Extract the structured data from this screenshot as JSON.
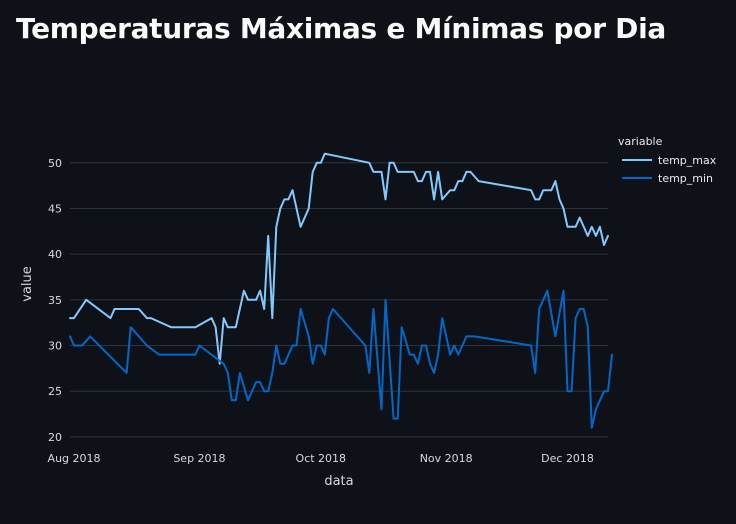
{
  "page": {
    "title": "Temperaturas Máximas e Mínimas por Dia"
  },
  "chart_data": {
    "type": "line",
    "xlabel": "data",
    "ylabel": "value",
    "xlim": [
      "2018-07-31",
      "2018-12-11"
    ],
    "ylim": [
      19,
      56
    ],
    "y_ticks": [
      20,
      25,
      30,
      35,
      40,
      45,
      50
    ],
    "x_ticks": [
      {
        "date": "2018-08-01",
        "label": "Aug 2018"
      },
      {
        "date": "2018-09-01",
        "label": "Sep 2018"
      },
      {
        "date": "2018-10-01",
        "label": "Oct 2018"
      },
      {
        "date": "2018-11-01",
        "label": "Nov 2018"
      },
      {
        "date": "2018-12-01",
        "label": "Dec 2018"
      }
    ],
    "grid": true,
    "legend": {
      "title": "variable",
      "position": "right"
    },
    "series": [
      {
        "name": "temp_max",
        "color": "#83c9ff",
        "points": [
          [
            "2018-07-31",
            33
          ],
          [
            "2018-08-01",
            33
          ],
          [
            "2018-08-04",
            35
          ],
          [
            "2018-08-10",
            33
          ],
          [
            "2018-08-11",
            34
          ],
          [
            "2018-08-17",
            34
          ],
          [
            "2018-08-19",
            33
          ],
          [
            "2018-08-20",
            33
          ],
          [
            "2018-08-25",
            32
          ],
          [
            "2018-08-31",
            32
          ],
          [
            "2018-09-04",
            33
          ],
          [
            "2018-09-05",
            32
          ],
          [
            "2018-09-06",
            28
          ],
          [
            "2018-09-07",
            33
          ],
          [
            "2018-09-08",
            32
          ],
          [
            "2018-09-10",
            32
          ],
          [
            "2018-09-12",
            36
          ],
          [
            "2018-09-13",
            35
          ],
          [
            "2018-09-15",
            35
          ],
          [
            "2018-09-16",
            36
          ],
          [
            "2018-09-17",
            34
          ],
          [
            "2018-09-18",
            42
          ],
          [
            "2018-09-19",
            33
          ],
          [
            "2018-09-20",
            43
          ],
          [
            "2018-09-21",
            45
          ],
          [
            "2018-09-22",
            46
          ],
          [
            "2018-09-23",
            46
          ],
          [
            "2018-09-24",
            47
          ],
          [
            "2018-09-26",
            43
          ],
          [
            "2018-09-28",
            45
          ],
          [
            "2018-09-29",
            49
          ],
          [
            "2018-09-30",
            50
          ],
          [
            "2018-10-01",
            50
          ],
          [
            "2018-10-02",
            51
          ],
          [
            "2018-10-13",
            50
          ],
          [
            "2018-10-14",
            49
          ],
          [
            "2018-10-16",
            49
          ],
          [
            "2018-10-17",
            46
          ],
          [
            "2018-10-18",
            50
          ],
          [
            "2018-10-19",
            50
          ],
          [
            "2018-10-20",
            49
          ],
          [
            "2018-10-24",
            49
          ],
          [
            "2018-10-25",
            48
          ],
          [
            "2018-10-26",
            48
          ],
          [
            "2018-10-27",
            49
          ],
          [
            "2018-10-28",
            49
          ],
          [
            "2018-10-29",
            46
          ],
          [
            "2018-10-30",
            49
          ],
          [
            "2018-10-31",
            46
          ],
          [
            "2018-11-02",
            47
          ],
          [
            "2018-11-03",
            47
          ],
          [
            "2018-11-04",
            48
          ],
          [
            "2018-11-05",
            48
          ],
          [
            "2018-11-06",
            49
          ],
          [
            "2018-11-07",
            49
          ],
          [
            "2018-11-09",
            48
          ],
          [
            "2018-11-22",
            47
          ],
          [
            "2018-11-23",
            46
          ],
          [
            "2018-11-24",
            46
          ],
          [
            "2018-11-25",
            47
          ],
          [
            "2018-11-27",
            47
          ],
          [
            "2018-11-28",
            48
          ],
          [
            "2018-11-29",
            46
          ],
          [
            "2018-11-30",
            45
          ],
          [
            "2018-12-01",
            43
          ],
          [
            "2018-12-03",
            43
          ],
          [
            "2018-12-04",
            44
          ],
          [
            "2018-12-06",
            42
          ],
          [
            "2018-12-07",
            43
          ],
          [
            "2018-12-08",
            42
          ],
          [
            "2018-12-09",
            43
          ],
          [
            "2018-12-10",
            41
          ],
          [
            "2018-12-11",
            42
          ]
        ]
      },
      {
        "name": "temp_min",
        "color": "#0068c9",
        "points": [
          [
            "2018-07-31",
            31
          ],
          [
            "2018-08-01",
            30
          ],
          [
            "2018-08-03",
            30
          ],
          [
            "2018-08-05",
            31
          ],
          [
            "2018-08-14",
            27
          ],
          [
            "2018-08-15",
            32
          ],
          [
            "2018-08-19",
            30
          ],
          [
            "2018-08-22",
            29
          ],
          [
            "2018-08-26",
            29
          ],
          [
            "2018-08-31",
            29
          ],
          [
            "2018-09-01",
            30
          ],
          [
            "2018-09-07",
            28
          ],
          [
            "2018-09-08",
            27
          ],
          [
            "2018-09-09",
            24
          ],
          [
            "2018-09-10",
            24
          ],
          [
            "2018-09-11",
            27
          ],
          [
            "2018-09-13",
            24
          ],
          [
            "2018-09-15",
            26
          ],
          [
            "2018-09-16",
            26
          ],
          [
            "2018-09-17",
            25
          ],
          [
            "2018-09-18",
            25
          ],
          [
            "2018-09-19",
            27
          ],
          [
            "2018-09-20",
            30
          ],
          [
            "2018-09-21",
            28
          ],
          [
            "2018-09-22",
            28
          ],
          [
            "2018-09-24",
            30
          ],
          [
            "2018-09-25",
            30
          ],
          [
            "2018-09-26",
            34
          ],
          [
            "2018-09-28",
            31
          ],
          [
            "2018-09-29",
            28
          ],
          [
            "2018-09-30",
            30
          ],
          [
            "2018-10-01",
            30
          ],
          [
            "2018-10-02",
            29
          ],
          [
            "2018-10-03",
            33
          ],
          [
            "2018-10-04",
            34
          ],
          [
            "2018-10-12",
            30
          ],
          [
            "2018-10-13",
            27
          ],
          [
            "2018-10-14",
            34
          ],
          [
            "2018-10-16",
            23
          ],
          [
            "2018-10-17",
            35
          ],
          [
            "2018-10-19",
            22
          ],
          [
            "2018-10-20",
            22
          ],
          [
            "2018-10-21",
            32
          ],
          [
            "2018-10-23",
            29
          ],
          [
            "2018-10-24",
            29
          ],
          [
            "2018-10-25",
            28
          ],
          [
            "2018-10-26",
            30
          ],
          [
            "2018-10-27",
            30
          ],
          [
            "2018-10-28",
            28
          ],
          [
            "2018-10-29",
            27
          ],
          [
            "2018-10-30",
            29
          ],
          [
            "2018-10-31",
            33
          ],
          [
            "2018-11-01",
            31
          ],
          [
            "2018-11-02",
            29
          ],
          [
            "2018-11-03",
            30
          ],
          [
            "2018-11-04",
            29
          ],
          [
            "2018-11-06",
            31
          ],
          [
            "2018-11-08",
            31
          ],
          [
            "2018-11-22",
            30
          ],
          [
            "2018-11-23",
            27
          ],
          [
            "2018-11-24",
            34
          ],
          [
            "2018-11-26",
            36
          ],
          [
            "2018-11-28",
            31
          ],
          [
            "2018-11-30",
            36
          ],
          [
            "2018-12-01",
            25
          ],
          [
            "2018-12-02",
            25
          ],
          [
            "2018-12-03",
            33
          ],
          [
            "2018-12-04",
            34
          ],
          [
            "2018-12-05",
            34
          ],
          [
            "2018-12-06",
            32
          ],
          [
            "2018-12-07",
            21
          ],
          [
            "2018-12-08",
            23
          ],
          [
            "2018-12-10",
            25
          ],
          [
            "2018-12-11",
            25
          ],
          [
            "2018-12-12",
            29
          ]
        ]
      }
    ]
  }
}
